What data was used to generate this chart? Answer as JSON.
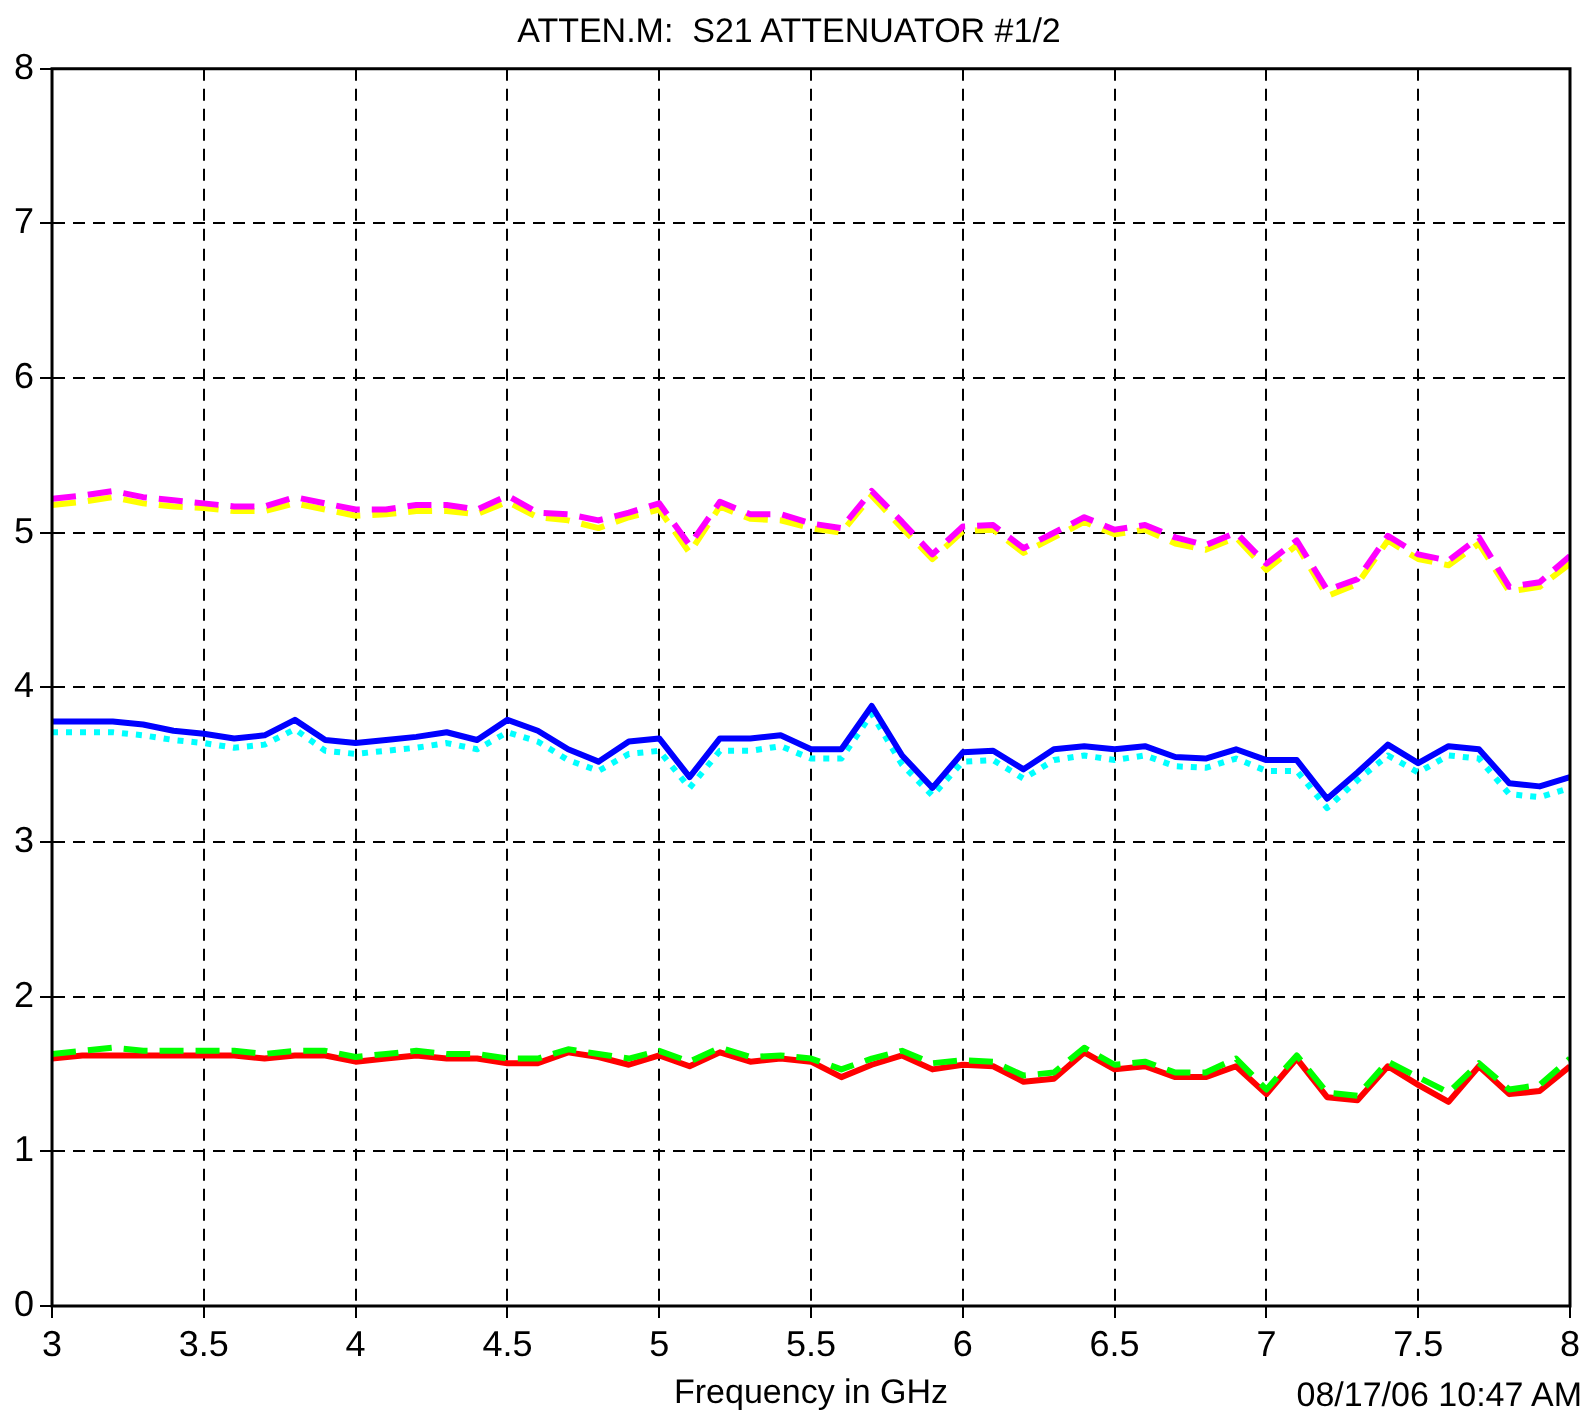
{
  "chart_data": {
    "type": "line",
    "title": "ATTEN.M:  S21 ATTENUATOR #1/2",
    "xlabel": "Frequency in GHz",
    "annotations": [
      "08/17/06 10:47 AM"
    ],
    "x": [
      3.0,
      3.1,
      3.2,
      3.3,
      3.4,
      3.5,
      3.6,
      3.7,
      3.8,
      3.9,
      4.0,
      4.1,
      4.2,
      4.3,
      4.4,
      4.5,
      4.6,
      4.7,
      4.8,
      4.9,
      5.0,
      5.1,
      5.2,
      5.3,
      5.4,
      5.5,
      5.6,
      5.7,
      5.8,
      5.9,
      6.0,
      6.1,
      6.2,
      6.3,
      6.4,
      6.5,
      6.6,
      6.7,
      6.8,
      6.9,
      7.0,
      7.1,
      7.2,
      7.3,
      7.4,
      7.5,
      7.6,
      7.7,
      7.8,
      7.9,
      8.0
    ],
    "series": [
      {
        "color": "#ff00ff",
        "line_style": "dashed",
        "values": [
          5.22,
          5.24,
          5.27,
          5.23,
          5.21,
          5.19,
          5.17,
          5.17,
          5.23,
          5.19,
          5.15,
          5.15,
          5.18,
          5.18,
          5.15,
          5.24,
          5.13,
          5.12,
          5.08,
          5.13,
          5.19,
          4.92,
          5.2,
          5.12,
          5.12,
          5.06,
          5.03,
          5.27,
          5.07,
          4.86,
          5.04,
          5.05,
          4.9,
          5.0,
          5.1,
          5.02,
          5.05,
          4.97,
          4.92,
          5.0,
          4.8,
          4.95,
          4.63,
          4.7,
          4.98,
          4.86,
          4.82,
          4.97,
          4.65,
          4.68,
          4.85
        ]
      },
      {
        "color": "#ffff00",
        "line_style": "dashed",
        "values": [
          5.18,
          5.2,
          5.23,
          5.19,
          5.17,
          5.16,
          5.14,
          5.14,
          5.19,
          5.15,
          5.11,
          5.12,
          5.14,
          5.14,
          5.12,
          5.2,
          5.1,
          5.08,
          5.03,
          5.1,
          5.15,
          4.87,
          5.17,
          5.09,
          5.08,
          5.03,
          5.0,
          5.24,
          5.03,
          4.83,
          5.01,
          5.02,
          4.87,
          4.97,
          5.07,
          4.99,
          5.02,
          4.93,
          4.89,
          4.97,
          4.76,
          4.92,
          4.59,
          4.67,
          4.95,
          4.83,
          4.79,
          4.93,
          4.62,
          4.65,
          4.8
        ]
      },
      {
        "color": "#0000ff",
        "line_style": "solid",
        "values": [
          3.78,
          3.78,
          3.78,
          3.76,
          3.72,
          3.7,
          3.67,
          3.69,
          3.79,
          3.66,
          3.64,
          3.66,
          3.68,
          3.71,
          3.66,
          3.79,
          3.72,
          3.6,
          3.52,
          3.65,
          3.67,
          3.42,
          3.67,
          3.67,
          3.69,
          3.6,
          3.6,
          3.88,
          3.56,
          3.35,
          3.58,
          3.59,
          3.47,
          3.6,
          3.62,
          3.6,
          3.62,
          3.55,
          3.54,
          3.6,
          3.53,
          3.53,
          3.28,
          3.45,
          3.63,
          3.51,
          3.62,
          3.6,
          3.38,
          3.36,
          3.42
        ]
      },
      {
        "color": "#00ffff",
        "line_style": "dotted",
        "values": [
          3.71,
          3.71,
          3.71,
          3.69,
          3.66,
          3.64,
          3.61,
          3.63,
          3.73,
          3.59,
          3.57,
          3.59,
          3.61,
          3.64,
          3.6,
          3.71,
          3.65,
          3.53,
          3.46,
          3.57,
          3.59,
          3.35,
          3.59,
          3.59,
          3.62,
          3.54,
          3.54,
          3.83,
          3.5,
          3.3,
          3.52,
          3.53,
          3.41,
          3.53,
          3.56,
          3.53,
          3.56,
          3.49,
          3.48,
          3.54,
          3.46,
          3.46,
          3.22,
          3.4,
          3.56,
          3.45,
          3.56,
          3.54,
          3.31,
          3.29,
          3.35
        ]
      },
      {
        "color": "#00ff00",
        "line_style": "dashed",
        "values": [
          1.63,
          1.65,
          1.67,
          1.65,
          1.65,
          1.65,
          1.65,
          1.63,
          1.65,
          1.65,
          1.61,
          1.63,
          1.65,
          1.63,
          1.63,
          1.6,
          1.6,
          1.66,
          1.63,
          1.6,
          1.65,
          1.58,
          1.67,
          1.61,
          1.62,
          1.6,
          1.53,
          1.6,
          1.65,
          1.57,
          1.59,
          1.58,
          1.49,
          1.51,
          1.67,
          1.56,
          1.58,
          1.51,
          1.51,
          1.6,
          1.4,
          1.62,
          1.38,
          1.36,
          1.58,
          1.48,
          1.38,
          1.57,
          1.4,
          1.43,
          1.6
        ]
      },
      {
        "color": "#ff0000",
        "line_style": "solid",
        "values": [
          1.6,
          1.62,
          1.62,
          1.62,
          1.62,
          1.62,
          1.62,
          1.6,
          1.62,
          1.62,
          1.58,
          1.6,
          1.62,
          1.6,
          1.6,
          1.57,
          1.57,
          1.64,
          1.61,
          1.56,
          1.62,
          1.55,
          1.64,
          1.58,
          1.6,
          1.58,
          1.48,
          1.56,
          1.62,
          1.53,
          1.56,
          1.55,
          1.45,
          1.47,
          1.64,
          1.53,
          1.55,
          1.48,
          1.48,
          1.55,
          1.37,
          1.6,
          1.35,
          1.33,
          1.55,
          1.43,
          1.32,
          1.55,
          1.37,
          1.39,
          1.55
        ]
      }
    ],
    "xlim": [
      3,
      8
    ],
    "xticks": [
      3,
      3.5,
      4,
      4.5,
      5,
      5.5,
      6,
      6.5,
      7,
      7.5,
      8
    ],
    "ylim": [
      0,
      8
    ],
    "yticks": [
      0,
      1,
      2,
      3,
      4,
      5,
      6,
      7,
      8
    ],
    "grid": true,
    "legend": false,
    "marker": "none"
  }
}
